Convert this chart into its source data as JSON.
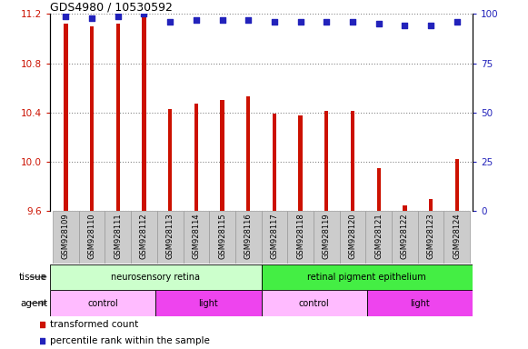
{
  "title": "GDS4980 / 10530592",
  "samples": [
    "GSM928109",
    "GSM928110",
    "GSM928111",
    "GSM928112",
    "GSM928113",
    "GSM928114",
    "GSM928115",
    "GSM928116",
    "GSM928117",
    "GSM928118",
    "GSM928119",
    "GSM928120",
    "GSM928121",
    "GSM928122",
    "GSM928123",
    "GSM928124"
  ],
  "transformed_count": [
    11.12,
    11.1,
    11.12,
    11.19,
    10.43,
    10.47,
    10.5,
    10.53,
    10.39,
    10.38,
    10.41,
    10.41,
    9.95,
    9.65,
    9.7,
    10.02
  ],
  "percentile_rank": [
    99,
    98,
    99,
    100,
    96,
    97,
    97,
    97,
    96,
    96,
    96,
    96,
    95,
    94,
    94,
    96
  ],
  "ylim_left": [
    9.6,
    11.2
  ],
  "ylim_right": [
    0,
    100
  ],
  "yticks_left": [
    9.6,
    10.0,
    10.4,
    10.8,
    11.2
  ],
  "yticks_right": [
    0,
    25,
    50,
    75,
    100
  ],
  "bar_color": "#cc1100",
  "dot_color": "#2222bb",
  "tissue_row": [
    {
      "label": "neurosensory retina",
      "start": 0,
      "end": 8,
      "color": "#ccffcc"
    },
    {
      "label": "retinal pigment epithelium",
      "start": 8,
      "end": 16,
      "color": "#44ee44"
    }
  ],
  "agent_row": [
    {
      "label": "control",
      "start": 0,
      "end": 4,
      "color": "#ffbbff"
    },
    {
      "label": "light",
      "start": 4,
      "end": 8,
      "color": "#ee44ee"
    },
    {
      "label": "control",
      "start": 8,
      "end": 12,
      "color": "#ffbbff"
    },
    {
      "label": "light",
      "start": 12,
      "end": 16,
      "color": "#ee44ee"
    }
  ],
  "grid_color": "#888888",
  "tick_label_color_left": "#cc1100",
  "tick_label_color_right": "#2222bb",
  "bar_width": 0.15,
  "sample_bg": "#cccccc"
}
